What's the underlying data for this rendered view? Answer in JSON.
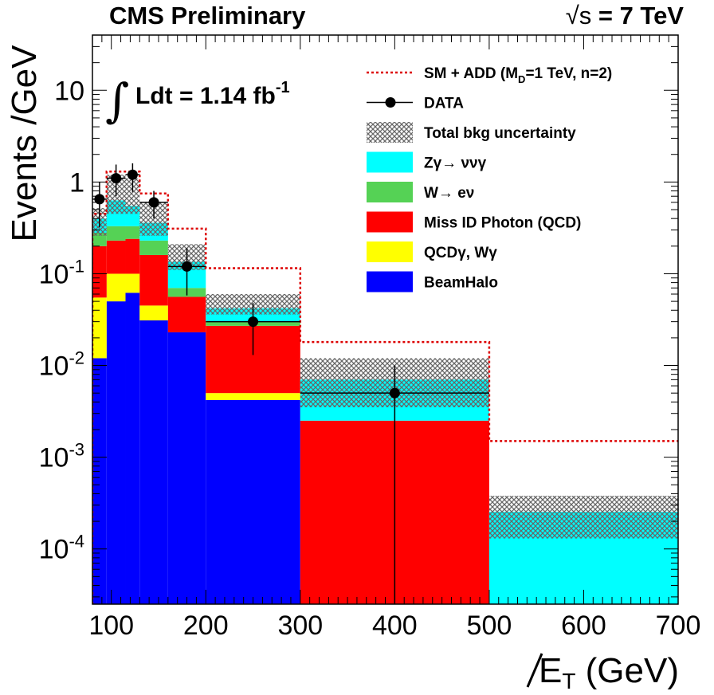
{
  "header": {
    "left": "CMS Preliminary",
    "right_sqrt": "√s",
    "right_rest": " = 7 TeV"
  },
  "annotation": {
    "integral": "∫",
    "text": "Ldt = 1.14 fb",
    "sup": "-1"
  },
  "chart_data": {
    "type": "bar",
    "title": "",
    "xlabel": "E_T (GeV)",
    "xlabel_parts": {
      "main": "E",
      "sub": "T",
      "unit": " (GeV)"
    },
    "ylabel": "Events /GeV",
    "xlim": [
      80,
      700
    ],
    "ylim": [
      2.5e-05,
      40
    ],
    "ylog": true,
    "x_ticks": [
      100,
      200,
      300,
      400,
      500,
      600,
      700
    ],
    "y_ticks": [
      {
        "value": 10,
        "base": "10",
        "exp": ""
      },
      {
        "value": 1,
        "base": "1",
        "exp": ""
      },
      {
        "value": 0.1,
        "base": "10",
        "exp": "-1"
      },
      {
        "value": 0.01,
        "base": "10",
        "exp": "-2"
      },
      {
        "value": 0.001,
        "base": "10",
        "exp": "-3"
      },
      {
        "value": 0.0001,
        "base": "10",
        "exp": "-4"
      }
    ],
    "bins": [
      {
        "lo": 80,
        "hi": 95
      },
      {
        "lo": 95,
        "hi": 115
      },
      {
        "lo": 115,
        "hi": 130
      },
      {
        "lo": 130,
        "hi": 160
      },
      {
        "lo": 160,
        "hi": 200
      },
      {
        "lo": 200,
        "hi": 300
      },
      {
        "lo": 300,
        "hi": 500
      },
      {
        "lo": 500,
        "hi": 700
      }
    ],
    "stack": [
      {
        "name": "BeamHalo",
        "color": "#0000ff",
        "values": [
          0.012,
          0.05,
          0.062,
          0.031,
          0.023,
          0.0042,
          1e-06,
          1e-06
        ]
      },
      {
        "name": "QCDγ, Wγ",
        "color": "#ffff00",
        "values": [
          0.043,
          0.05,
          0.038,
          0.014,
          1e-06,
          0.0008,
          1e-06,
          1e-06
        ]
      },
      {
        "name": "Miss ID Photon (QCD)",
        "color": "#ff0000",
        "values": [
          0.145,
          0.13,
          0.14,
          0.115,
          0.033,
          0.022,
          0.0025,
          1e-06
        ]
      },
      {
        "name": "W→ eν",
        "color": "#55d255",
        "values": [
          0.08,
          0.1,
          0.09,
          0.07,
          0.014,
          0.003,
          1e-06,
          1e-06
        ]
      },
      {
        "name": "Zγ→ ννγ",
        "color": "#00ffff",
        "values": [
          0.12,
          0.3,
          0.22,
          0.13,
          0.065,
          0.012,
          0.0045,
          0.00025
        ]
      }
    ],
    "uncertainty": {
      "name": "Total bkg uncertainty",
      "lower": [
        0.26,
        0.45,
        0.45,
        0.26,
        0.11,
        0.036,
        0.0035,
        0.00013
      ],
      "upper": [
        0.52,
        1.2,
        1.1,
        0.6,
        0.21,
        0.06,
        0.012,
        0.00038
      ]
    },
    "signal": {
      "name": "SM + ADD (M_D=1 TeV, n=2)",
      "color": "#dd0000",
      "values": [
        0.45,
        1.3,
        1.3,
        0.75,
        0.31,
        0.115,
        0.018,
        0.0015
      ]
    },
    "data": {
      "name": "DATA",
      "points": [
        {
          "x": 87.5,
          "y": 0.65,
          "xerr": 7.5,
          "ylo": 0.32,
          "yhi": 1.0
        },
        {
          "x": 105,
          "y": 1.1,
          "xerr": 10,
          "ylo": 0.7,
          "yhi": 1.55
        },
        {
          "x": 122.5,
          "y": 1.2,
          "xerr": 7.5,
          "ylo": 0.78,
          "yhi": 1.6
        },
        {
          "x": 145,
          "y": 0.6,
          "xerr": 15,
          "ylo": 0.4,
          "yhi": 0.8
        },
        {
          "x": 180,
          "y": 0.12,
          "xerr": 20,
          "ylo": 0.058,
          "yhi": 0.19
        },
        {
          "x": 250,
          "y": 0.03,
          "xerr": 50,
          "ylo": 0.013,
          "yhi": 0.048
        },
        {
          "x": 400,
          "y": 0.005,
          "xerr": 100,
          "ylo": 2.5e-05,
          "yhi": 0.01
        }
      ]
    },
    "legend": {
      "placement": "top-right",
      "entries": [
        {
          "label_main": "SM + ADD (M",
          "label_sub": "D",
          "label_rest": "=1 TeV, n=2)",
          "kind": "dashed-line",
          "color": "#dd0000"
        },
        {
          "label_main": "DATA",
          "label_sub": "",
          "label_rest": "",
          "kind": "marker"
        },
        {
          "label_main": "Total bkg uncertainty",
          "label_sub": "",
          "label_rest": "",
          "kind": "hatch"
        },
        {
          "label_main": " Zγ→ ννγ",
          "label_sub": "",
          "label_rest": "",
          "kind": "box",
          "color": "#00ffff"
        },
        {
          "label_main": "W→ eν",
          "label_sub": "",
          "label_rest": "",
          "kind": "box",
          "color": "#55d255"
        },
        {
          "label_main": "Miss ID Photon (QCD)",
          "label_sub": "",
          "label_rest": "",
          "kind": "box",
          "color": "#ff0000"
        },
        {
          "label_main": "QCDγ, Wγ",
          "label_sub": "",
          "label_rest": "",
          "kind": "box",
          "color": "#ffff00"
        },
        {
          "label_main": "BeamHalo",
          "label_sub": "",
          "label_rest": "",
          "kind": "box",
          "color": "#0000ff"
        }
      ]
    }
  }
}
